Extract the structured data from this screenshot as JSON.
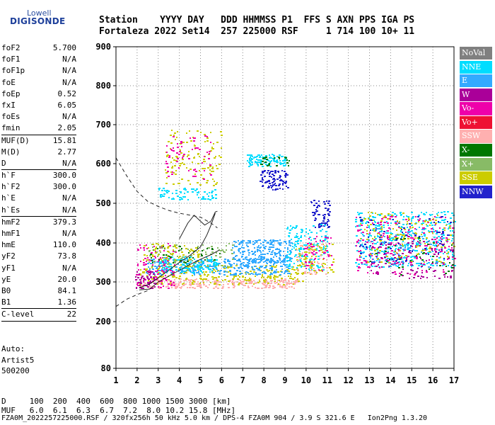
{
  "logo": {
    "top": "Lowell",
    "main": "DIGISONDE"
  },
  "header": {
    "line1": "Station    YYYY DAY   DDD HHMMSS P1  FFS S AXN PPS IGA PS",
    "line2": "Fortaleza 2022 Set14  257 225000 RSF     1 714 100 10+ 11"
  },
  "params": [
    {
      "name": "foF2",
      "value": "5.700"
    },
    {
      "name": "foF1",
      "value": "N/A"
    },
    {
      "name": "foF1p",
      "value": "N/A"
    },
    {
      "name": "foE",
      "value": "N/A"
    },
    {
      "name": "foEp",
      "value": "0.52"
    },
    {
      "name": "fxI",
      "value": "6.05"
    },
    {
      "name": "foEs",
      "value": "N/A"
    },
    {
      "name": "fmin",
      "value": "2.05"
    },
    {
      "sep": true
    },
    {
      "name": "MUF(D)",
      "value": "15.81"
    },
    {
      "name": "M(D)",
      "value": "2.77"
    },
    {
      "name": "D",
      "value": "N/A"
    },
    {
      "sep": true
    },
    {
      "name": "h`F",
      "value": "300.0"
    },
    {
      "name": "h`F2",
      "value": "300.0"
    },
    {
      "name": "h`E",
      "value": "N/A"
    },
    {
      "name": "h`Es",
      "value": "N/A"
    },
    {
      "sep": true
    },
    {
      "name": "hmF2",
      "value": "379.3"
    },
    {
      "name": "hmF1",
      "value": "N/A"
    },
    {
      "name": "hmE",
      "value": "110.0"
    },
    {
      "name": "yF2",
      "value": "73.8"
    },
    {
      "name": "yF1",
      "value": "N/A"
    },
    {
      "name": "yE",
      "value": "20.0"
    },
    {
      "name": "B0",
      "value": "84.1"
    },
    {
      "name": "B1",
      "value": "1.36"
    },
    {
      "sep": true
    },
    {
      "name": "C-level",
      "value": "22"
    },
    {
      "sep": true
    }
  ],
  "auto": {
    "line1": "Auto:",
    "line2": "Artist5",
    "line3": "500200"
  },
  "legend": [
    {
      "label": "NoVal",
      "color": "#808080"
    },
    {
      "label": "NNE",
      "color": "#00ddff"
    },
    {
      "label": "E",
      "color": "#33aaff"
    },
    {
      "label": "W",
      "color": "#aa0099"
    },
    {
      "label": "Vo-",
      "color": "#ee00aa"
    },
    {
      "label": "Vo+",
      "color": "#ee1133"
    },
    {
      "label": "SSW",
      "color": "#ffb0b0"
    },
    {
      "label": "X-",
      "color": "#007700"
    },
    {
      "label": "X+",
      "color": "#88bb66"
    },
    {
      "label": "SSE",
      "color": "#cccc00"
    },
    {
      "label": "NNW",
      "color": "#2222cc"
    }
  ],
  "bottom": {
    "d_line": "D     100  200  400  600  800 1000 1500 3000 [km]",
    "muf_line": "MUF   6.0  6.1  6.3  6.7  7.2  8.0 10.2 15.8 [MHz]"
  },
  "footer": "FZA0M_2022257225000.RSF / 320fx256h 50 kHz 5.0 km / DPS-4 FZA0M 904 / 3.9 S 321.6 E   Ion2Png 1.3.20",
  "chart_data": {
    "type": "scatter",
    "xlim": [
      1,
      17
    ],
    "ylim": [
      80,
      900
    ],
    "x_ticks": [
      "1",
      "2",
      "3",
      "4",
      "5",
      "6",
      "7",
      "8",
      "9",
      "10",
      "11",
      "12",
      "13",
      "14",
      "15",
      "16",
      "17"
    ],
    "y_ticks": [
      "900",
      "800",
      "700",
      "600",
      "500",
      "400",
      "300",
      "200",
      "80"
    ],
    "grid": true,
    "legend_position": "right",
    "clusters": [
      {
        "name": "SSW",
        "fmin": 2.1,
        "fmax": 9.6,
        "hmin": 285,
        "hmax": 310,
        "n": 260
      },
      {
        "name": "SSE",
        "fmin": 2.1,
        "fmax": 9.8,
        "hmin": 295,
        "hmax": 345,
        "n": 260
      },
      {
        "name": "E",
        "fmin": 2.4,
        "fmax": 9.2,
        "hmin": 320,
        "hmax": 360,
        "n": 320
      },
      {
        "name": "E",
        "fmin": 6.5,
        "fmax": 9.3,
        "hmin": 350,
        "hmax": 410,
        "n": 220
      },
      {
        "name": "NNE",
        "fmin": 3.0,
        "fmax": 5.8,
        "hmin": 325,
        "hmax": 365,
        "n": 120
      },
      {
        "name": "Vo-",
        "fmin": 1.9,
        "fmax": 3.8,
        "hmin": 285,
        "hmax": 400,
        "n": 110
      },
      {
        "name": "W",
        "fmin": 1.9,
        "fmax": 2.8,
        "hmin": 285,
        "hmax": 330,
        "n": 50
      },
      {
        "name": "X+",
        "fmin": 2.5,
        "fmax": 6.5,
        "hmin": 340,
        "hmax": 400,
        "n": 90
      },
      {
        "name": "X-",
        "fmin": 2.6,
        "fmax": 6.0,
        "hmin": 350,
        "hmax": 395,
        "n": 35
      },
      {
        "name": "SSE",
        "fmin": 2.2,
        "fmax": 5.0,
        "hmin": 355,
        "hmax": 400,
        "n": 60
      },
      {
        "name": "NNE",
        "fmin": 3.0,
        "fmax": 5.7,
        "hmin": 510,
        "hmax": 540,
        "n": 70
      },
      {
        "name": "SSE",
        "fmin": 3.3,
        "fmax": 6.0,
        "hmin": 545,
        "hmax": 690,
        "n": 120
      },
      {
        "name": "Vo-",
        "fmin": 3.3,
        "fmax": 5.5,
        "hmin": 560,
        "hmax": 680,
        "n": 60
      },
      {
        "name": "NNE",
        "fmin": 7.2,
        "fmax": 9.0,
        "hmin": 595,
        "hmax": 625,
        "n": 110
      },
      {
        "name": "NNW",
        "fmin": 7.8,
        "fmax": 9.1,
        "hmin": 535,
        "hmax": 585,
        "n": 90
      },
      {
        "name": "X-",
        "fmin": 7.8,
        "fmax": 9.2,
        "hmin": 595,
        "hmax": 620,
        "n": 25
      },
      {
        "name": "NNW",
        "fmin": 10.2,
        "fmax": 11.1,
        "hmin": 440,
        "hmax": 510,
        "n": 70
      },
      {
        "name": "NNE",
        "fmin": 9.0,
        "fmax": 11.0,
        "hmin": 330,
        "hmax": 450,
        "n": 150
      },
      {
        "name": "SSE",
        "fmin": 9.5,
        "fmax": 11.3,
        "hmin": 320,
        "hmax": 400,
        "n": 90
      },
      {
        "name": "SSW",
        "fmin": 9.5,
        "fmax": 11.0,
        "hmin": 320,
        "hmax": 400,
        "n": 50
      },
      {
        "name": "Vo-",
        "fmin": 9.8,
        "fmax": 11.2,
        "hmin": 330,
        "hmax": 420,
        "n": 45
      },
      {
        "name": "NNE",
        "fmin": 12.3,
        "fmax": 17.0,
        "hmin": 340,
        "hmax": 480,
        "n": 380
      },
      {
        "name": "Vo-",
        "fmin": 12.3,
        "fmax": 17.0,
        "hmin": 320,
        "hmax": 470,
        "n": 200
      },
      {
        "name": "W",
        "fmin": 13.0,
        "fmax": 17.0,
        "hmin": 310,
        "hmax": 420,
        "n": 120
      },
      {
        "name": "NNW",
        "fmin": 12.5,
        "fmax": 16.8,
        "hmin": 350,
        "hmax": 470,
        "n": 80
      },
      {
        "name": "SSE",
        "fmin": 12.5,
        "fmax": 17.0,
        "hmin": 350,
        "hmax": 480,
        "n": 150
      },
      {
        "name": "E",
        "fmin": 12.5,
        "fmax": 16.5,
        "hmin": 340,
        "hmax": 440,
        "n": 80
      },
      {
        "name": "X-",
        "fmin": 13.0,
        "fmax": 17.0,
        "hmin": 320,
        "hmax": 420,
        "n": 35
      }
    ],
    "curves": [
      {
        "name": "muf_dashed",
        "style": "dashed",
        "points": [
          [
            1.0,
            615
          ],
          [
            1.5,
            570
          ],
          [
            2.0,
            530
          ],
          [
            2.5,
            505
          ],
          [
            3.0,
            492
          ],
          [
            3.5,
            482
          ],
          [
            4.0,
            475
          ],
          [
            4.5,
            470
          ],
          [
            5.0,
            465
          ],
          [
            5.5,
            450
          ],
          [
            5.8,
            438
          ]
        ]
      },
      {
        "name": "profile_lower",
        "style": "dashed",
        "points": [
          [
            1.0,
            238
          ],
          [
            1.5,
            256
          ],
          [
            2.0,
            268
          ],
          [
            2.5,
            278
          ]
        ]
      },
      {
        "name": "trace_inner",
        "style": "solid",
        "points": [
          [
            2.1,
            285
          ],
          [
            2.6,
            295
          ],
          [
            3.0,
            310
          ],
          [
            3.5,
            330
          ],
          [
            4.0,
            350
          ],
          [
            4.5,
            368
          ],
          [
            5.0,
            390
          ],
          [
            5.3,
            420
          ],
          [
            5.5,
            445
          ],
          [
            5.7,
            475
          ]
        ]
      },
      {
        "name": "trace_outer",
        "style": "solid",
        "points": [
          [
            2.1,
            280
          ],
          [
            2.6,
            282
          ],
          [
            3.0,
            300
          ],
          [
            3.5,
            315
          ],
          [
            4.0,
            330
          ],
          [
            4.5,
            345
          ],
          [
            5.0,
            358
          ],
          [
            5.5,
            370
          ],
          [
            5.9,
            382
          ]
        ]
      },
      {
        "name": "trace_peak",
        "style": "solid",
        "points": [
          [
            4.0,
            410
          ],
          [
            4.4,
            450
          ],
          [
            4.7,
            470
          ],
          [
            5.0,
            455
          ],
          [
            5.2,
            445
          ],
          [
            5.5,
            455
          ],
          [
            5.7,
            478
          ],
          [
            5.8,
            480
          ]
        ]
      }
    ]
  }
}
